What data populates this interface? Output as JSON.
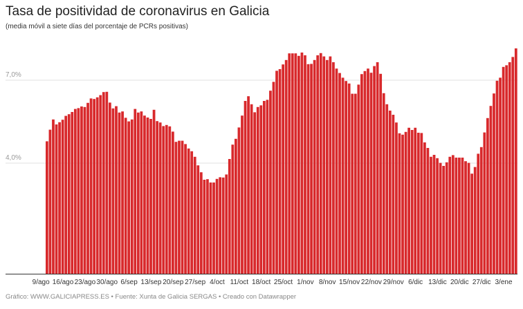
{
  "title": "Tasa de positividad de coronavirus en Galicia",
  "subtitle": "(media móvil a siete días del porcentaje de PCRs positivas)",
  "footer": "Gráfico: WWW.GALICIAPRESS.ES • Fuente: Xunta de Galicia SERGAS • Creado con Datawrapper",
  "colors": {
    "bar": "#d8292c",
    "grid": "#e2e2e2",
    "axis": "#333333"
  },
  "chart_data": {
    "type": "bar",
    "title": "Tasa de positividad de coronavirus en Galicia",
    "ylabel": "",
    "xlabel": "",
    "ylim": [
      0,
      8.3
    ],
    "yticks": [
      {
        "value": 4.0,
        "label": "4,0%"
      },
      {
        "value": 7.0,
        "label": "7,0%"
      }
    ],
    "xticks": [
      {
        "index": -2,
        "label": "9/ago"
      },
      {
        "index": 5,
        "label": "16/ago"
      },
      {
        "index": 12,
        "label": "23/ago"
      },
      {
        "index": 19,
        "label": "30/ago"
      },
      {
        "index": 26,
        "label": "6/sep"
      },
      {
        "index": 33,
        "label": "13/sep"
      },
      {
        "index": 40,
        "label": "20/sep"
      },
      {
        "index": 47,
        "label": "27/sep"
      },
      {
        "index": 54,
        "label": "4/oct"
      },
      {
        "index": 61,
        "label": "11/oct"
      },
      {
        "index": 68,
        "label": "18/oct"
      },
      {
        "index": 75,
        "label": "25/oct"
      },
      {
        "index": 82,
        "label": "1/nov"
      },
      {
        "index": 89,
        "label": "8/nov"
      },
      {
        "index": 96,
        "label": "15/nov"
      },
      {
        "index": 103,
        "label": "22/nov"
      },
      {
        "index": 110,
        "label": "29/nov"
      },
      {
        "index": 117,
        "label": "6/dic"
      },
      {
        "index": 124,
        "label": "13/dic"
      },
      {
        "index": 131,
        "label": "20/dic"
      },
      {
        "index": 138,
        "label": "27/dic"
      },
      {
        "index": 145,
        "label": "3/ene"
      }
    ],
    "values": [
      4.79,
      5.21,
      5.58,
      5.4,
      5.48,
      5.57,
      5.71,
      5.77,
      5.85,
      5.96,
      5.99,
      6.05,
      6.03,
      6.18,
      6.34,
      6.32,
      6.38,
      6.46,
      6.57,
      6.58,
      6.19,
      5.98,
      6.06,
      5.83,
      5.87,
      5.64,
      5.51,
      5.58,
      5.96,
      5.83,
      5.87,
      5.72,
      5.65,
      5.6,
      5.93,
      5.52,
      5.47,
      5.34,
      5.38,
      5.33,
      5.14,
      4.77,
      4.81,
      4.81,
      4.69,
      4.53,
      4.43,
      4.23,
      3.92,
      3.67,
      3.4,
      3.42,
      3.3,
      3.3,
      3.43,
      3.49,
      3.48,
      3.59,
      4.15,
      4.67,
      4.88,
      5.29,
      5.72,
      6.25,
      6.42,
      6.13,
      5.84,
      6.03,
      6.09,
      6.25,
      6.29,
      6.62,
      6.94,
      7.34,
      7.4,
      7.57,
      7.73,
      7.97,
      7.97,
      7.97,
      7.88,
      8.0,
      7.9,
      7.58,
      7.59,
      7.73,
      7.9,
      7.98,
      7.86,
      7.73,
      7.86,
      7.65,
      7.42,
      7.26,
      7.09,
      6.97,
      6.88,
      6.51,
      6.51,
      6.84,
      7.22,
      7.33,
      7.42,
      7.27,
      7.51,
      7.65,
      7.23,
      6.53,
      6.13,
      5.9,
      5.75,
      5.47,
      5.08,
      5.03,
      5.13,
      5.28,
      5.2,
      5.28,
      5.1,
      5.09,
      4.75,
      4.55,
      4.23,
      4.3,
      4.18,
      4.01,
      3.9,
      4.03,
      4.23,
      4.29,
      4.2,
      4.2,
      4.2,
      4.07,
      4.01,
      3.62,
      3.86,
      4.34,
      4.58,
      5.11,
      5.63,
      6.07,
      6.52,
      6.98,
      7.09,
      7.48,
      7.54,
      7.65,
      7.84,
      8.15
    ]
  }
}
